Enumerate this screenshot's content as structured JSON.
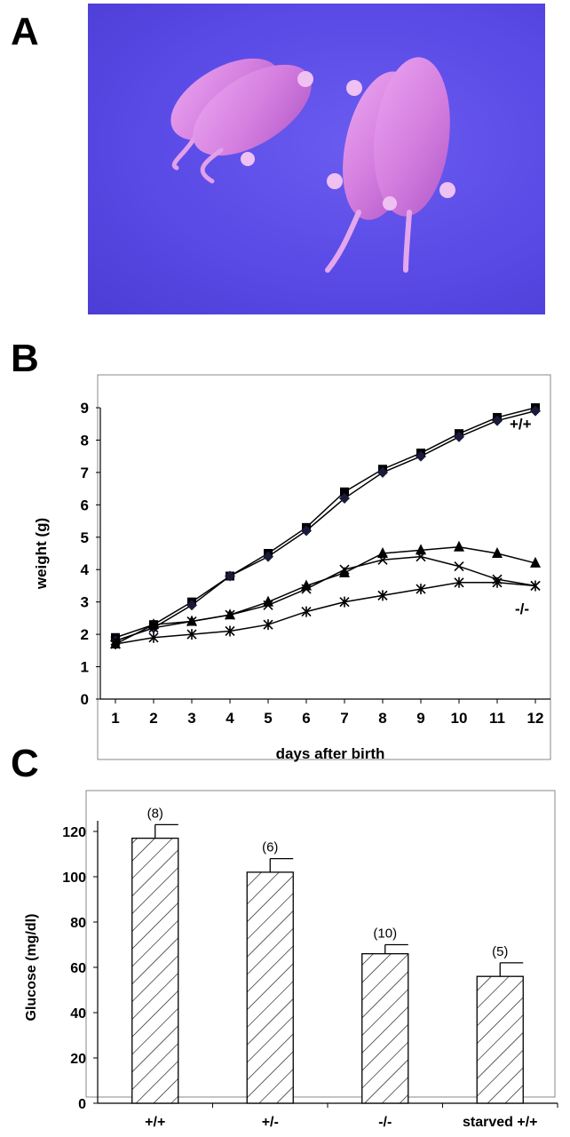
{
  "panels": {
    "a": "A",
    "b": "B",
    "c": "C"
  },
  "photo": {
    "subject": "four neonatal mice on blue background",
    "colors": {
      "background": "#5a4ae6",
      "mouse": "#d77fe0"
    }
  },
  "chart_data": [
    {
      "type": "line",
      "xlabel": "days after birth",
      "ylabel": "weight (g)",
      "x": [
        1,
        2,
        3,
        4,
        5,
        6,
        7,
        8,
        9,
        10,
        11,
        12
      ],
      "xlim": [
        1,
        12
      ],
      "ylim": [
        0,
        9
      ],
      "yticks": [
        "0",
        "1",
        "2",
        "3",
        "4",
        "5",
        "6",
        "7",
        "8",
        "9"
      ],
      "xticks": [
        "1",
        "2",
        "3",
        "4",
        "5",
        "6",
        "7",
        "8",
        "9",
        "10",
        "11",
        "12"
      ],
      "series": [
        {
          "marker": "square",
          "values": [
            1.9,
            2.3,
            3.0,
            3.8,
            4.5,
            5.3,
            6.4,
            7.1,
            7.6,
            8.2,
            8.7,
            9.0
          ]
        },
        {
          "marker": "diamond",
          "values": [
            1.8,
            2.2,
            2.9,
            3.8,
            4.4,
            5.2,
            6.2,
            7.0,
            7.5,
            8.1,
            8.6,
            8.9
          ]
        },
        {
          "marker": "triangle",
          "values": [
            1.7,
            2.3,
            2.4,
            2.6,
            3.0,
            3.5,
            3.9,
            4.5,
            4.6,
            4.7,
            4.5,
            4.2
          ]
        },
        {
          "marker": "x",
          "values": [
            1.8,
            2.2,
            2.4,
            2.6,
            2.9,
            3.4,
            4.0,
            4.3,
            4.4,
            4.1,
            3.7,
            3.5
          ]
        },
        {
          "marker": "asterisk",
          "values": [
            1.7,
            1.9,
            2.0,
            2.1,
            2.3,
            2.7,
            3.0,
            3.2,
            3.4,
            3.6,
            3.6,
            3.5
          ]
        }
      ],
      "annotations": [
        "+/+",
        "-/-"
      ],
      "grid": false,
      "legend": "none"
    },
    {
      "type": "bar",
      "ylabel": "Glucose (mg/dl)",
      "categories": [
        "+/+",
        "+/-",
        "-/-",
        "starved +/+"
      ],
      "values": [
        117,
        102,
        66,
        56
      ],
      "errors": [
        6,
        6,
        4,
        6
      ],
      "n_labels": [
        "(8)",
        "(6)",
        "(10)",
        "(5)"
      ],
      "ylim": [
        0,
        120
      ],
      "yticks": [
        "0",
        "20",
        "40",
        "60",
        "80",
        "100",
        "120"
      ],
      "fill": "diagonal hatch",
      "grid": false
    }
  ]
}
